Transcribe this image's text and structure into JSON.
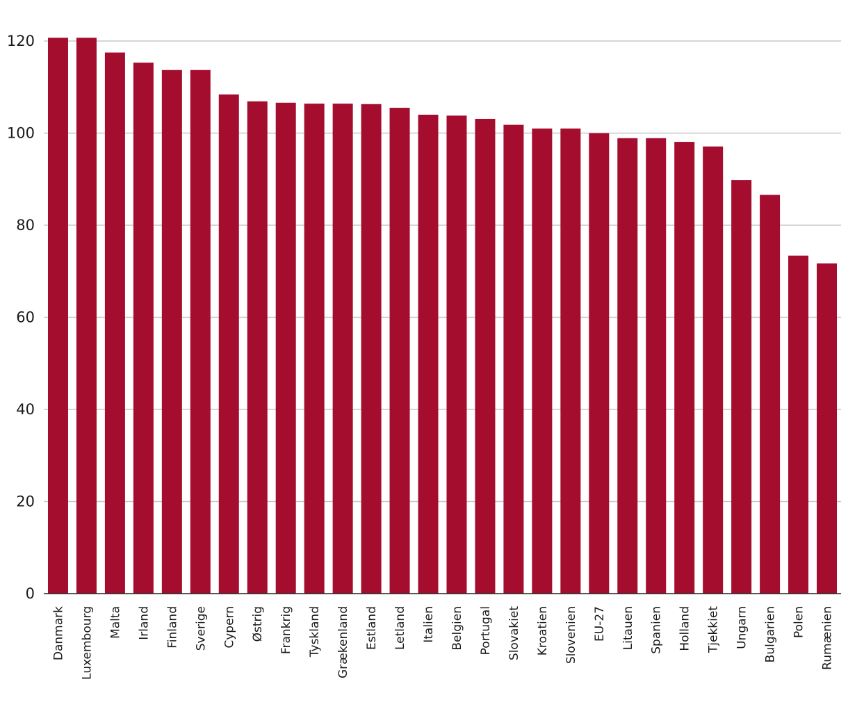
{
  "chart_data": {
    "type": "bar",
    "title": "",
    "xlabel": "",
    "ylabel": "",
    "ylim": [
      0,
      120
    ],
    "yticks": [
      0,
      20,
      40,
      60,
      80,
      100,
      120
    ],
    "grid": "horizontal",
    "bar_color": "#a50d2f",
    "categories": [
      "Danmark",
      "Luxembourg",
      "Malta",
      "Irland",
      "Finland",
      "Sverige",
      "Cypern",
      "Østrig",
      "Frankrig",
      "Tyskland",
      "Grækenland",
      "Estland",
      "Letland",
      "Italien",
      "Belgien",
      "Portugal",
      "Slovakiet",
      "Kroatien",
      "Slovenien",
      "EU-27",
      "Litauen",
      "Spanien",
      "Holland",
      "Tjekkiet",
      "Ungarn",
      "Bulgarien",
      "Polen",
      "Rumænien"
    ],
    "values": [
      120.7,
      120.7,
      117.5,
      115.3,
      113.7,
      113.7,
      108.4,
      106.9,
      106.6,
      106.4,
      106.4,
      106.3,
      105.5,
      104.0,
      103.8,
      103.1,
      101.8,
      101.0,
      101.0,
      100.0,
      98.9,
      98.9,
      98.1,
      97.1,
      89.8,
      86.6,
      73.4,
      71.7
    ]
  }
}
